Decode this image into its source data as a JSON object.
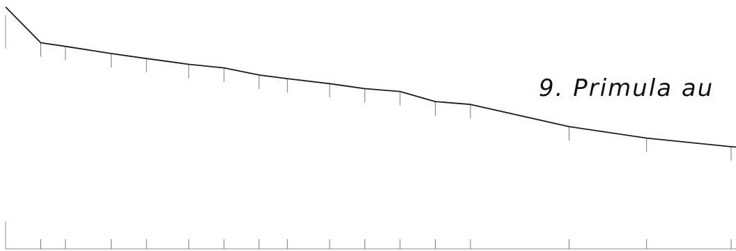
{
  "chart_data": {
    "type": "line",
    "annotation": "9. Primula au",
    "grid": false,
    "legend": "none",
    "color": "#1a1a1a",
    "series": [
      {
        "x": [
          0,
          10,
          17,
          30,
          40,
          52,
          62,
          72,
          80,
          92,
          102,
          112,
          122,
          132,
          160,
          182,
          206
        ],
        "y": [
          100,
          95,
          94.5,
          93.5,
          92.8,
          92,
          91.5,
          90.5,
          90,
          89.3,
          88.6,
          88.2,
          86.8,
          86.4,
          83.3,
          81.7,
          80.5
        ]
      }
    ]
  }
}
